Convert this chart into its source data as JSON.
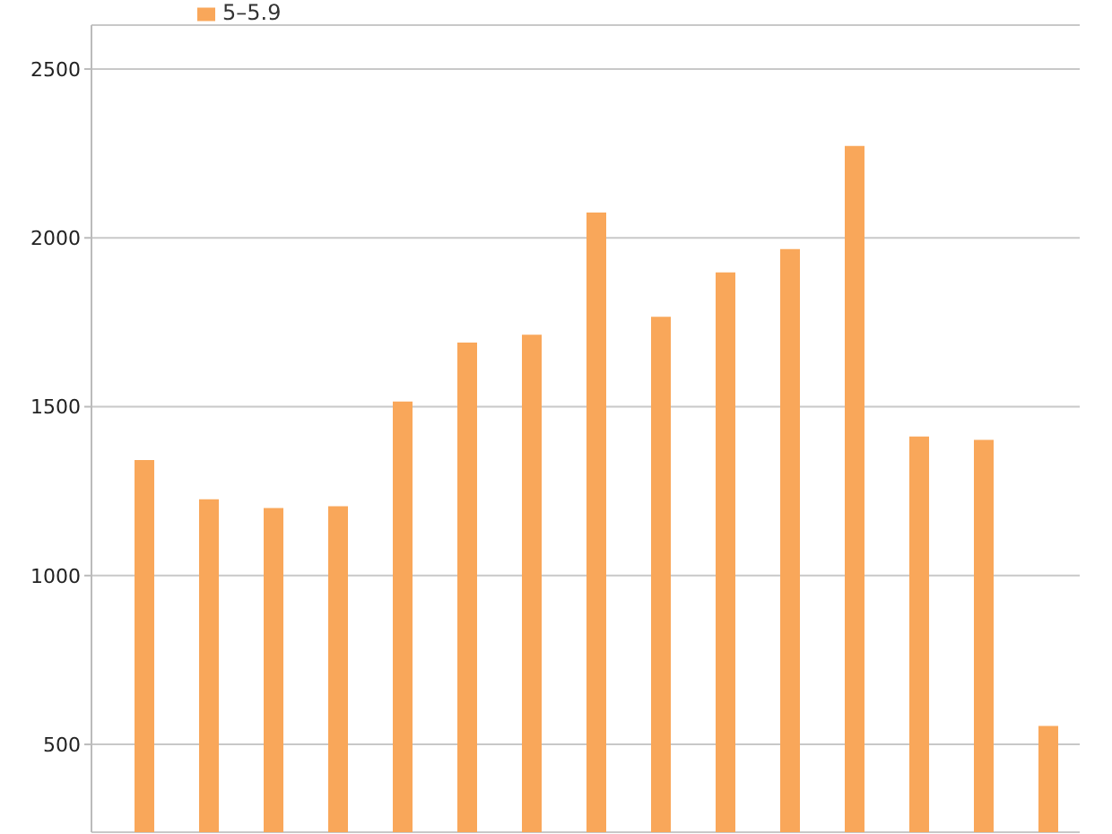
{
  "chart_data": {
    "type": "bar",
    "categories": [
      null,
      null,
      null,
      null,
      null,
      null,
      null,
      null,
      null,
      null,
      null,
      null,
      null,
      null,
      null
    ],
    "series": [
      {
        "name": "5–5.9",
        "color": "#f9a75a",
        "values": [
          1342,
          1226,
          1200,
          1205,
          1515,
          1690,
          1713,
          2075,
          1766,
          1898,
          1967,
          2272,
          1412,
          1402,
          555
        ]
      }
    ],
    "ylim": [
      240,
      2630
    ],
    "yticks": [
      500,
      1000,
      1500,
      2000,
      2500
    ],
    "grid": "y",
    "legend": "top left"
  }
}
